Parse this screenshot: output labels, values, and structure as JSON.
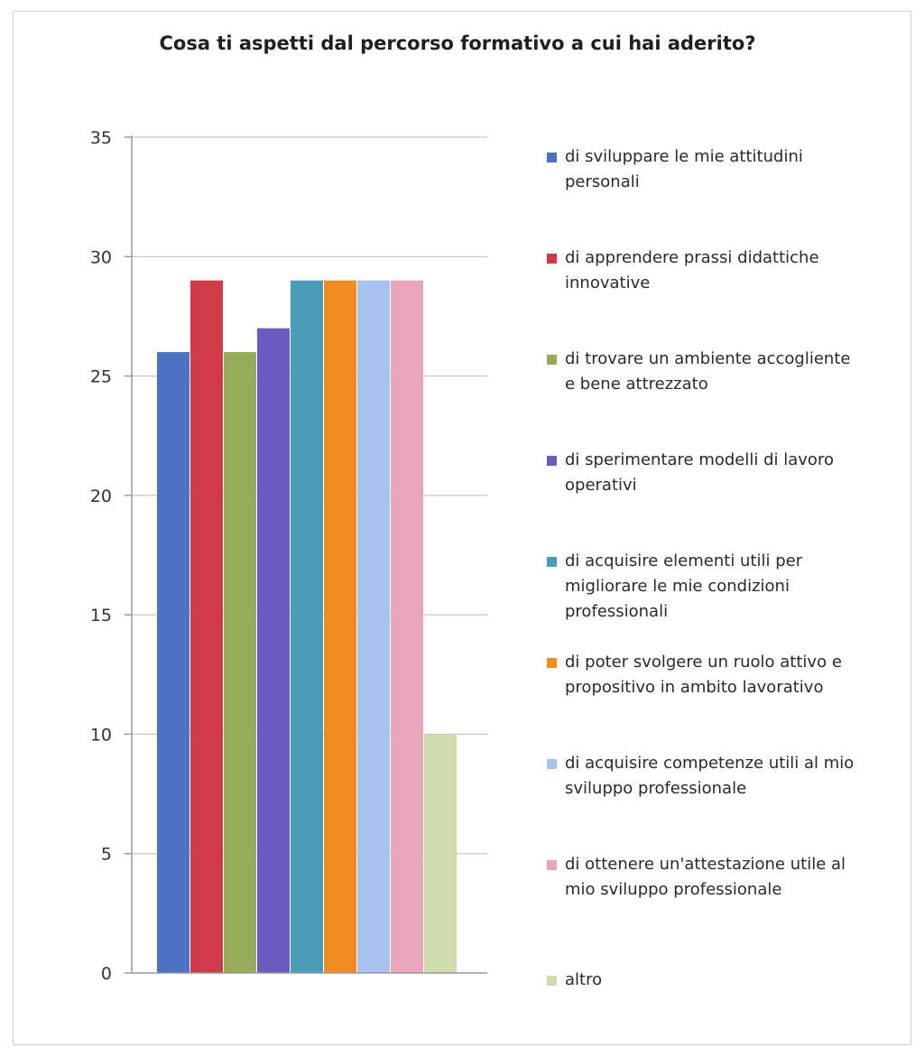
{
  "chart_data": {
    "type": "bar",
    "title": "Cosa ti aspetti dal percorso formativo a cui hai aderito?",
    "xlabel": "",
    "ylabel": "",
    "ylim": [
      0,
      35
    ],
    "yticks": [
      0,
      5,
      10,
      15,
      20,
      25,
      30,
      35
    ],
    "grid": true,
    "legend_position": "right",
    "categories": [
      ""
    ],
    "series": [
      {
        "name": "di sviluppare le mie attitudini personali",
        "values": [
          26
        ],
        "color": "#4a72c0"
      },
      {
        "name": "di apprendere prassi didattiche innovative",
        "values": [
          29
        ],
        "color": "#d03a48"
      },
      {
        "name": "di trovare un ambiente accogliente e bene attrezzato",
        "values": [
          26
        ],
        "color": "#95ad58"
      },
      {
        "name": "di sperimentare modelli di lavoro operativi",
        "values": [
          27
        ],
        "color": "#6a5cc0"
      },
      {
        "name": "di acquisire elementi utili per migliorare le mie condizioni professionali",
        "values": [
          29
        ],
        "color": "#4a9db6"
      },
      {
        "name": "di poter svolgere un ruolo attivo e propositivo in ambito lavorativo",
        "values": [
          29
        ],
        "color": "#f08c22"
      },
      {
        "name": "di acquisire competenze utili al mio sviluppo professionale",
        "values": [
          29
        ],
        "color": "#a9c1ef"
      },
      {
        "name": "di ottenere un'attestazione utile al mio sviluppo professionale",
        "values": [
          29
        ],
        "color": "#e8a6b8"
      },
      {
        "name": "altro",
        "values": [
          10
        ],
        "color": "#cddbad"
      }
    ]
  },
  "legend_lines": [
    [
      "di sviluppare le mie attitudini",
      "personali"
    ],
    [
      "di apprendere prassi didattiche",
      "innovative"
    ],
    [
      "di trovare un ambiente accogliente",
      "e bene attrezzato"
    ],
    [
      "di sperimentare modelli di lavoro",
      "operativi"
    ],
    [
      "di acquisire elementi utili per",
      "migliorare le mie condizioni",
      "professionali"
    ],
    [
      "di poter svolgere un ruolo attivo e",
      "propositivo in ambito lavorativo"
    ],
    [
      "di acquisire competenze utili al mio",
      "sviluppo professionale"
    ],
    [
      "di ottenere un'attestazione utile al",
      "mio sviluppo professionale"
    ],
    [
      "altro"
    ]
  ]
}
